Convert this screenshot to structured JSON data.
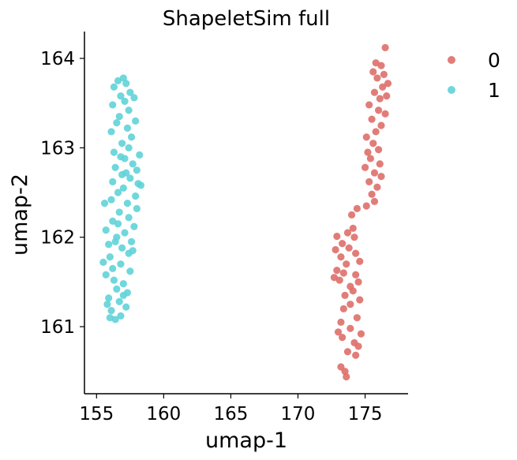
{
  "chart_data": {
    "type": "scatter",
    "title": "ShapeletSim full",
    "xlabel": "umap-1",
    "ylabel": "umap-2",
    "xlim": [
      154.1,
      178.2
    ],
    "ylim": [
      160.25,
      164.3
    ],
    "xticks": [
      155,
      160,
      165,
      170,
      175
    ],
    "yticks": [
      161,
      162,
      163,
      164
    ],
    "xtick_labels": [
      "155",
      "160",
      "165",
      "170",
      "175"
    ],
    "ytick_labels": [
      "161",
      "162",
      "163",
      "164"
    ],
    "grid": false,
    "legend": {
      "placement": "outside-top-right"
    },
    "series": [
      {
        "name": "0",
        "color": "#de6f6a",
        "points": [
          [
            176.5,
            164.12
          ],
          [
            175.8,
            163.95
          ],
          [
            176.2,
            163.92
          ],
          [
            175.6,
            163.85
          ],
          [
            176.4,
            163.82
          ],
          [
            175.9,
            163.78
          ],
          [
            176.7,
            163.72
          ],
          [
            176.3,
            163.68
          ],
          [
            175.7,
            163.62
          ],
          [
            176.1,
            163.55
          ],
          [
            176.6,
            163.58
          ],
          [
            175.3,
            163.48
          ],
          [
            176.0,
            163.42
          ],
          [
            176.5,
            163.38
          ],
          [
            175.5,
            163.32
          ],
          [
            176.2,
            163.25
          ],
          [
            175.8,
            163.18
          ],
          [
            175.1,
            163.12
          ],
          [
            175.6,
            163.05
          ],
          [
            176.0,
            162.98
          ],
          [
            175.2,
            162.95
          ],
          [
            175.4,
            162.88
          ],
          [
            176.1,
            162.82
          ],
          [
            175.0,
            162.78
          ],
          [
            175.7,
            162.72
          ],
          [
            176.2,
            162.68
          ],
          [
            175.3,
            162.62
          ],
          [
            175.9,
            162.56
          ],
          [
            175.5,
            162.48
          ],
          [
            175.7,
            162.4
          ],
          [
            175.1,
            162.35
          ],
          [
            174.4,
            162.32
          ],
          [
            174.0,
            162.25
          ],
          [
            174.1,
            162.1
          ],
          [
            173.7,
            162.05
          ],
          [
            174.2,
            162.0
          ],
          [
            172.9,
            162.01
          ],
          [
            173.3,
            161.93
          ],
          [
            173.8,
            161.88
          ],
          [
            172.8,
            161.86
          ],
          [
            174.3,
            161.82
          ],
          [
            173.2,
            161.78
          ],
          [
            174.6,
            161.73
          ],
          [
            173.6,
            161.7
          ],
          [
            172.9,
            161.63
          ],
          [
            173.4,
            161.6
          ],
          [
            174.3,
            161.58
          ],
          [
            172.7,
            161.55
          ],
          [
            173.1,
            161.52
          ],
          [
            174.5,
            161.5
          ],
          [
            173.9,
            161.45
          ],
          [
            174.1,
            161.4
          ],
          [
            173.5,
            161.35
          ],
          [
            174.6,
            161.3
          ],
          [
            173.9,
            161.25
          ],
          [
            173.4,
            161.2
          ],
          [
            174.4,
            161.1
          ],
          [
            173.2,
            161.05
          ],
          [
            173.9,
            160.98
          ],
          [
            174.7,
            160.92
          ],
          [
            173.3,
            160.88
          ],
          [
            174.2,
            160.82
          ],
          [
            173.7,
            160.72
          ],
          [
            174.3,
            160.68
          ],
          [
            173.2,
            160.55
          ],
          [
            173.5,
            160.5
          ],
          [
            173.6,
            160.44
          ],
          [
            174.5,
            160.78
          ],
          [
            173.0,
            160.94
          ]
        ]
      },
      {
        "name": "1",
        "color": "#60d3d8",
        "points": [
          [
            157.0,
            163.78
          ],
          [
            156.6,
            163.75
          ],
          [
            157.2,
            163.72
          ],
          [
            156.3,
            163.68
          ],
          [
            157.5,
            163.62
          ],
          [
            156.8,
            163.58
          ],
          [
            157.1,
            163.52
          ],
          [
            157.8,
            163.56
          ],
          [
            156.2,
            163.48
          ],
          [
            157.4,
            163.42
          ],
          [
            156.7,
            163.35
          ],
          [
            157.9,
            163.3
          ],
          [
            156.5,
            163.28
          ],
          [
            157.3,
            163.22
          ],
          [
            156.1,
            163.18
          ],
          [
            157.6,
            163.12
          ],
          [
            156.9,
            163.05
          ],
          [
            157.4,
            163.0
          ],
          [
            156.3,
            162.95
          ],
          [
            158.2,
            162.92
          ],
          [
            156.8,
            162.9
          ],
          [
            157.1,
            162.88
          ],
          [
            157.7,
            162.82
          ],
          [
            156.4,
            162.78
          ],
          [
            158.0,
            162.75
          ],
          [
            156.9,
            162.7
          ],
          [
            157.5,
            162.66
          ],
          [
            156.2,
            162.62
          ],
          [
            158.3,
            162.58
          ],
          [
            157.0,
            162.55
          ],
          [
            156.6,
            162.5
          ],
          [
            157.9,
            162.46
          ],
          [
            156.1,
            162.42
          ],
          [
            157.3,
            162.38
          ],
          [
            155.6,
            162.38
          ],
          [
            158.0,
            162.32
          ],
          [
            156.7,
            162.28
          ],
          [
            157.4,
            162.22
          ],
          [
            156.2,
            162.18
          ],
          [
            157.8,
            162.12
          ],
          [
            155.7,
            162.08
          ],
          [
            157.1,
            162.05
          ],
          [
            156.5,
            162.0
          ],
          [
            157.6,
            161.95
          ],
          [
            155.9,
            161.92
          ],
          [
            156.9,
            161.88
          ],
          [
            157.4,
            161.82
          ],
          [
            156.0,
            161.78
          ],
          [
            156.8,
            161.7
          ],
          [
            157.5,
            161.62
          ],
          [
            155.7,
            161.58
          ],
          [
            156.3,
            161.52
          ],
          [
            157.0,
            161.48
          ],
          [
            156.5,
            161.42
          ],
          [
            157.3,
            161.38
          ],
          [
            155.9,
            161.32
          ],
          [
            156.7,
            161.28
          ],
          [
            157.2,
            161.22
          ],
          [
            156.1,
            161.18
          ],
          [
            156.8,
            161.12
          ],
          [
            156.4,
            161.08
          ],
          [
            155.8,
            161.25
          ],
          [
            156.0,
            161.1
          ],
          [
            157.0,
            161.35
          ],
          [
            155.5,
            161.72
          ],
          [
            156.2,
            161.65
          ],
          [
            157.7,
            161.85
          ],
          [
            158.1,
            162.6
          ],
          [
            156.6,
            162.15
          ],
          [
            157.2,
            162.72
          ],
          [
            156.4,
            161.95
          ]
        ]
      }
    ]
  }
}
